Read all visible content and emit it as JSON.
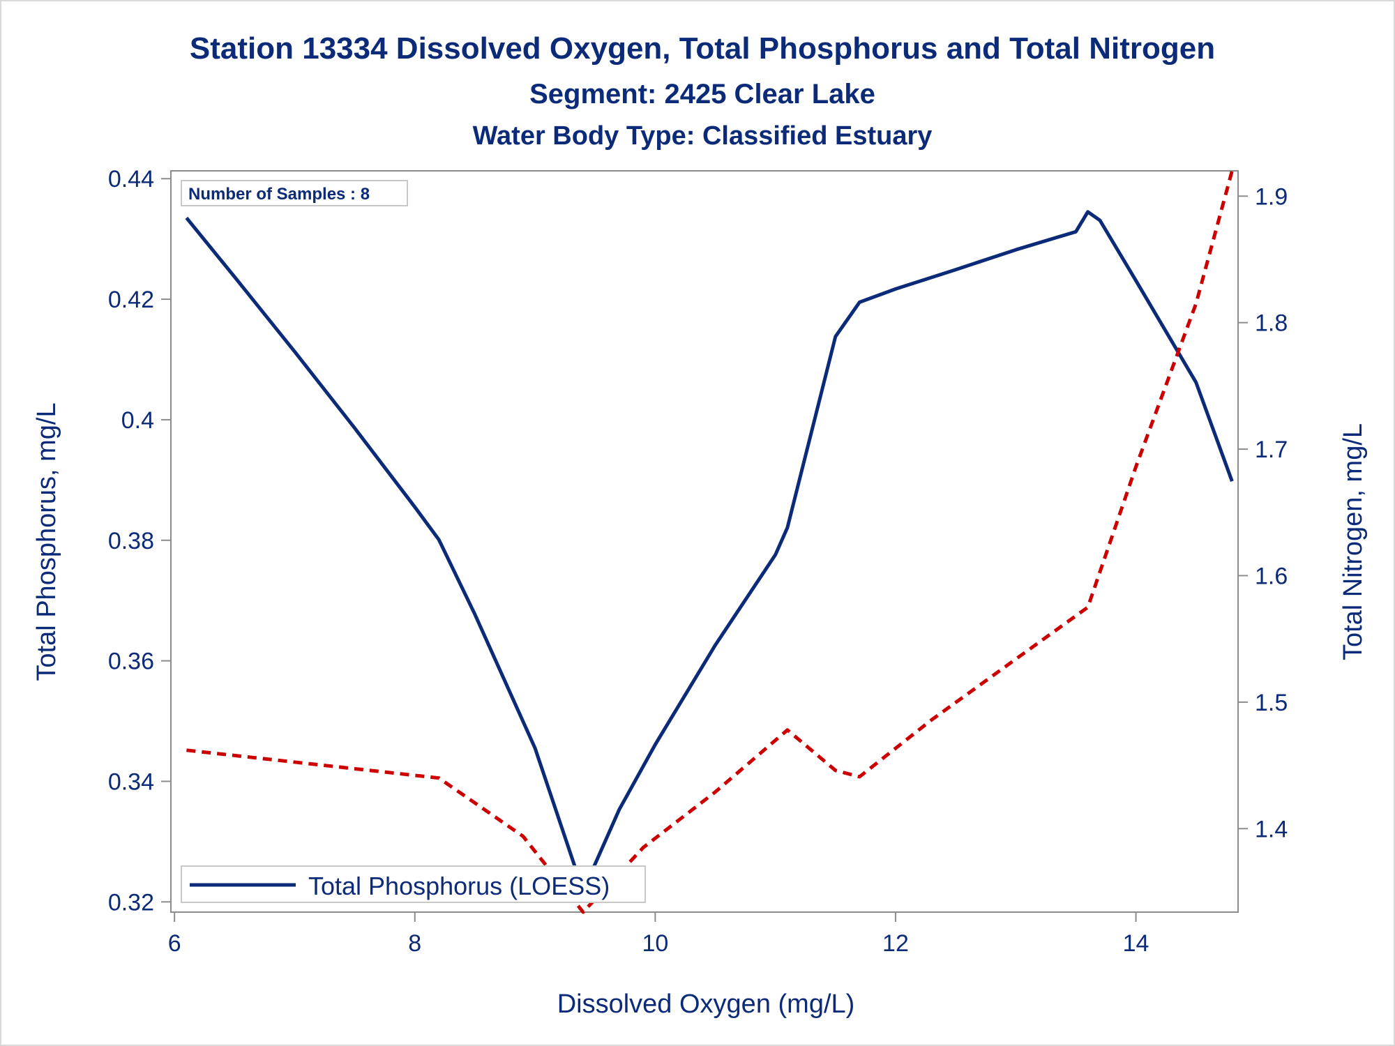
{
  "chart_data": {
    "type": "line",
    "title": "Station 13334  Dissolved Oxygen, Total Phosphorus and Total Nitrogen",
    "subtitle": "Segment: 2425  Clear Lake",
    "subtitle2": "Water Body Type: Classified Estuary",
    "annotation": "Number of Samples : 8",
    "xlabel": "Dissolved Oxygen (mg/L)",
    "ylabel": "Total Phosphorus, mg/L",
    "y2label": "Total Nitrogen, mg/L",
    "xlim": [
      5.97,
      14.85
    ],
    "ylim": [
      0.3183,
      0.4413
    ],
    "y2lim": [
      1.334,
      1.92
    ],
    "xticks": [
      "6",
      "8",
      "10",
      "12",
      "14"
    ],
    "yticks": [
      "0.32",
      "0.34",
      "0.36",
      "0.38",
      "0.4",
      "0.42",
      "0.44"
    ],
    "y2ticks": [
      "1.4",
      "1.5",
      "1.6",
      "1.7",
      "1.8",
      "1.9"
    ],
    "legend": {
      "placement": "bottom-left",
      "entries": [
        "Total Phosphorus (LOESS)"
      ]
    },
    "grid": false,
    "series": [
      {
        "name": "Total Phosphorus (LOESS)",
        "axis": "left",
        "color": "#0b2a78",
        "dash": "solid",
        "x": [
          6.1,
          6.5,
          7.0,
          7.5,
          8.0,
          8.2,
          8.5,
          9.0,
          9.4,
          9.7,
          10.0,
          10.5,
          11.0,
          11.1,
          11.5,
          11.7,
          12.0,
          12.5,
          13.0,
          13.5,
          13.6,
          13.7,
          14.0,
          14.5,
          14.8
        ],
        "y": [
          0.4335,
          0.4237,
          0.4113,
          0.3986,
          0.3855,
          0.3801,
          0.3677,
          0.3455,
          0.3218,
          0.3353,
          0.3461,
          0.3626,
          0.3776,
          0.3821,
          0.4138,
          0.4195,
          0.4217,
          0.4249,
          0.4282,
          0.4312,
          0.4345,
          0.4331,
          0.4231,
          0.4062,
          0.3898
        ]
      },
      {
        "name": "",
        "axis": "right",
        "color": "#cc0000",
        "dash": "dashed",
        "x": [
          6.1,
          8.2,
          8.9,
          9.4,
          9.9,
          10.5,
          11.1,
          11.5,
          11.7,
          12.3,
          13.0,
          13.6,
          14.0,
          14.5,
          14.8
        ],
        "y": [
          1.462,
          1.44,
          1.394,
          1.334,
          1.385,
          1.429,
          1.478,
          1.446,
          1.441,
          1.486,
          1.534,
          1.575,
          1.686,
          1.815,
          1.92
        ]
      }
    ]
  }
}
